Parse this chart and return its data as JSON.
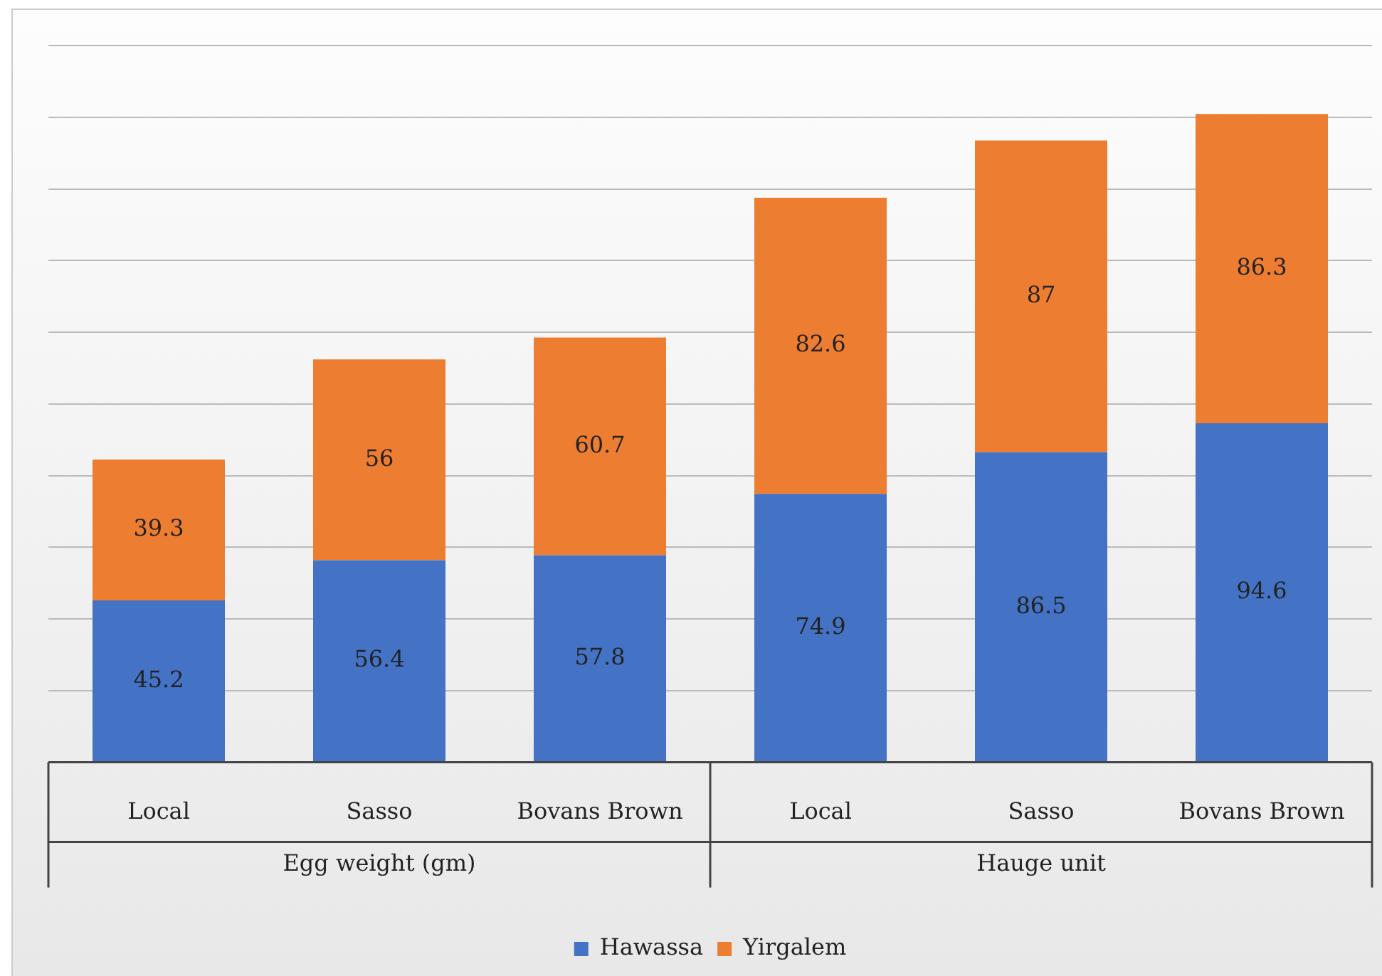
{
  "chart_data": {
    "type": "bar",
    "stacked": true,
    "categories": [
      "Local",
      "Sasso",
      "Bovans Brown",
      "Local",
      "Sasso",
      "Bovans Brown"
    ],
    "series": [
      {
        "name": "Hawassa",
        "color": "#4472c4",
        "values": [
          45.2,
          56.4,
          57.8,
          74.9,
          86.5,
          94.6
        ]
      },
      {
        "name": "Yirgalem",
        "color": "#ed7d31",
        "values": [
          39.3,
          56,
          60.7,
          82.6,
          87,
          86.3
        ]
      }
    ],
    "ylim": [
      0,
      200
    ],
    "yticks": [
      {
        "value": 0,
        "label": null
      },
      {
        "value": 20,
        "label": null
      },
      {
        "value": 40,
        "label": null
      },
      {
        "value": 60,
        "label": null
      },
      {
        "value": 80,
        "label": null
      },
      {
        "value": 100,
        "label": null
      },
      {
        "value": 120,
        "label": null
      },
      {
        "value": 140,
        "label": null
      },
      {
        "value": 160,
        "label": null
      },
      {
        "value": 180,
        "label": null
      },
      {
        "value": 200,
        "label": null
      }
    ],
    "tick_labels": "x",
    "grid": "y",
    "data_labels": true,
    "legend": "bottom",
    "annotations": [
      "Egg weight (gm)",
      "Hauge unit"
    ]
  }
}
